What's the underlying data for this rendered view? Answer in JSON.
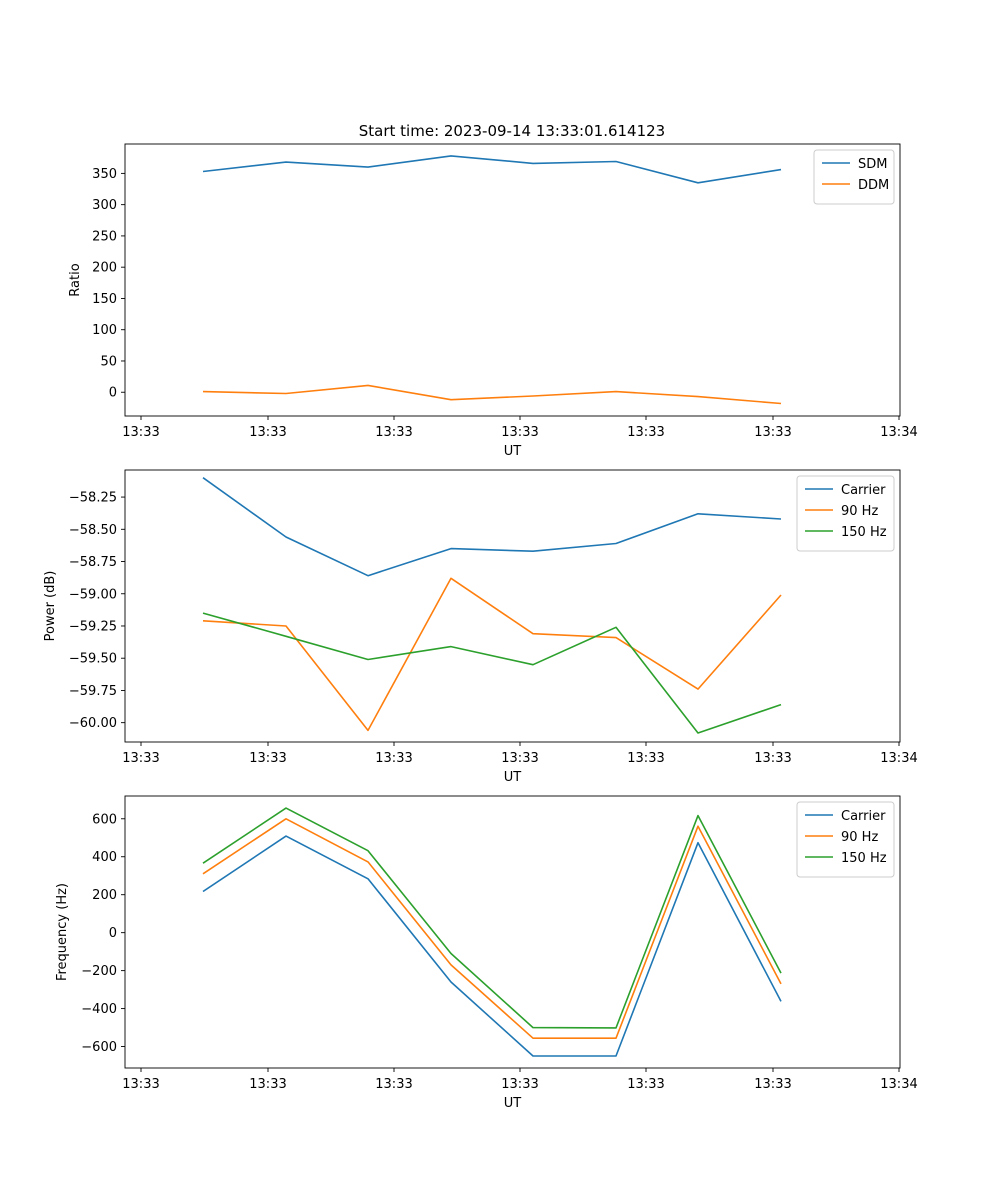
{
  "figure_title": "Start time: 2023-09-14 13:33:01.614123",
  "chart_data": [
    {
      "type": "line",
      "xlabel": "UT",
      "ylabel": "Ratio",
      "x_tick_labels": [
        "13:33",
        "13:33",
        "13:33",
        "13:33",
        "13:33",
        "13:33",
        "13:34"
      ],
      "ylim": [
        -38,
        397
      ],
      "y_ticks": [
        0,
        50,
        100,
        150,
        200,
        250,
        300,
        350
      ],
      "y_tick_labels": [
        "0",
        "50",
        "100",
        "150",
        "200",
        "250",
        "300",
        "350"
      ],
      "legend_position": "top-right",
      "series": [
        {
          "name": "SDM",
          "color": "#1f77b4",
          "values": [
            353,
            368,
            360,
            378,
            366,
            369,
            335,
            356
          ]
        },
        {
          "name": "DDM",
          "color": "#ff7f0e",
          "values": [
            1,
            -2,
            11,
            -12,
            -6,
            1,
            -7,
            -18
          ]
        }
      ]
    },
    {
      "type": "line",
      "xlabel": "UT",
      "ylabel": "Power (dB)",
      "x_tick_labels": [
        "13:33",
        "13:33",
        "13:33",
        "13:33",
        "13:33",
        "13:33",
        "13:34"
      ],
      "ylim": [
        -60.15,
        -58.04
      ],
      "y_ticks": [
        -60.0,
        -59.75,
        -59.5,
        -59.25,
        -59.0,
        -58.75,
        -58.5,
        -58.25
      ],
      "y_tick_labels": [
        "−60.00",
        "−59.75",
        "−59.50",
        "−59.25",
        "−59.00",
        "−58.75",
        "−58.50",
        "−58.25"
      ],
      "legend_position": "top-right",
      "series": [
        {
          "name": "Carrier",
          "color": "#1f77b4",
          "values": [
            -58.1,
            -58.56,
            -58.86,
            -58.65,
            -58.67,
            -58.61,
            -58.38,
            -58.42
          ]
        },
        {
          "name": "90 Hz",
          "color": "#ff7f0e",
          "values": [
            -59.21,
            -59.25,
            -60.06,
            -58.88,
            -59.31,
            -59.34,
            -59.74,
            -59.01
          ]
        },
        {
          "name": "150 Hz",
          "color": "#2ca02c",
          "values": [
            -59.15,
            -59.33,
            -59.51,
            -59.41,
            -59.55,
            -59.26,
            -60.08,
            -59.86
          ]
        }
      ]
    },
    {
      "type": "line",
      "xlabel": "UT",
      "ylabel": "Frequency (Hz)",
      "x_tick_labels": [
        "13:33",
        "13:33",
        "13:33",
        "13:33",
        "13:33",
        "13:33",
        "13:34"
      ],
      "ylim": [
        -713,
        720
      ],
      "y_ticks": [
        -600,
        -400,
        -200,
        0,
        200,
        400,
        600
      ],
      "y_tick_labels": [
        "−600",
        "−400",
        "−200",
        "0",
        "200",
        "400",
        "600"
      ],
      "legend_position": "top-right",
      "series": [
        {
          "name": "Carrier",
          "color": "#1f77b4",
          "values": [
            217,
            509,
            284,
            -260,
            -650,
            -650,
            474,
            -362
          ]
        },
        {
          "name": "90 Hz",
          "color": "#ff7f0e",
          "values": [
            310,
            600,
            373,
            -170,
            -556,
            -556,
            561,
            -270
          ]
        },
        {
          "name": "150 Hz",
          "color": "#2ca02c",
          "values": [
            366,
            656,
            432,
            -110,
            -500,
            -502,
            617,
            -213
          ]
        }
      ]
    }
  ]
}
